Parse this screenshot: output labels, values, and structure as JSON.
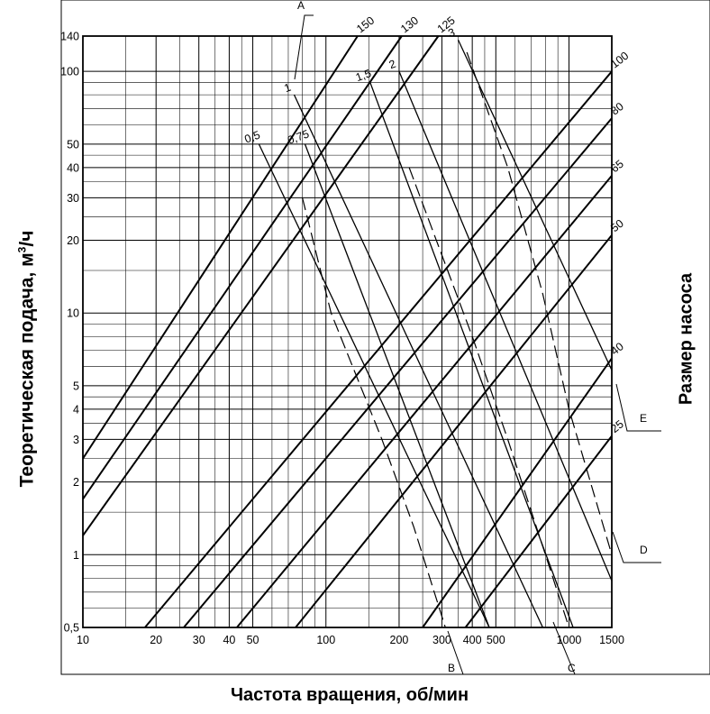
{
  "chart_data": {
    "type": "line",
    "xscale": "log",
    "yscale": "log",
    "xlim": [
      10,
      1500
    ],
    "ylim": [
      0.5,
      140
    ],
    "grid": true,
    "xlabel": "Частота вращения, об/мин",
    "ylabel_main": "Теоретическая подача, м",
    "ylabel_sup": "3",
    "ylabel_tail": "/ч",
    "right_label": "Размер насоса",
    "x_tick_labels": [
      "10",
      "20",
      "30",
      "40",
      "50",
      "100",
      "200",
      "300",
      "400",
      "500",
      "1000",
      "1500"
    ],
    "x_tick_values": [
      10,
      20,
      30,
      40,
      50,
      100,
      200,
      300,
      400,
      500,
      1000,
      1500
    ],
    "y_tick_labels": [
      "0,5",
      "1",
      "2",
      "3",
      "4",
      "5",
      "10",
      "20",
      "30",
      "40",
      "50",
      "100",
      "140"
    ],
    "y_tick_values": [
      0.5,
      1,
      2,
      3,
      4,
      5,
      10,
      20,
      30,
      40,
      50,
      100,
      140
    ],
    "pump_sizes": [
      {
        "name": "150",
        "points": [
          [
            10,
            2.5
          ],
          [
            135,
            140
          ]
        ]
      },
      {
        "name": "130",
        "points": [
          [
            10,
            1.7
          ],
          [
            205,
            140
          ]
        ]
      },
      {
        "name": "125",
        "points": [
          [
            10,
            1.2
          ],
          [
            290,
            140
          ]
        ]
      },
      {
        "name": "100",
        "points": [
          [
            18,
            0.5
          ],
          [
            1500,
            100
          ]
        ]
      },
      {
        "name": "80",
        "points": [
          [
            26,
            0.5
          ],
          [
            1500,
            64
          ]
        ]
      },
      {
        "name": "65",
        "points": [
          [
            43,
            0.5
          ],
          [
            1500,
            37
          ]
        ]
      },
      {
        "name": "50",
        "points": [
          [
            75,
            0.5
          ],
          [
            1500,
            21
          ]
        ]
      },
      {
        "name": "40",
        "points": [
          [
            250,
            0.5
          ],
          [
            1500,
            6.5
          ]
        ]
      },
      {
        "name": "25",
        "points": [
          [
            375,
            0.5
          ],
          [
            1500,
            3.1
          ]
        ]
      }
    ],
    "viscosity_lines": [
      {
        "name": "0,5",
        "points": [
          [
            53,
            50
          ],
          [
            470,
            0.5
          ]
        ]
      },
      {
        "name": "0,75",
        "points": [
          [
            82,
            50
          ],
          [
            470,
            0.5
          ]
        ]
      },
      {
        "name": "1",
        "points": [
          [
            74,
            80
          ],
          [
            780,
            0.5
          ]
        ]
      },
      {
        "name": "1,5",
        "points": [
          [
            152,
            90
          ],
          [
            1040,
            0.5
          ]
        ]
      },
      {
        "name": "2",
        "points": [
          [
            200,
            100
          ],
          [
            1500,
            0.78
          ]
        ]
      },
      {
        "name": "3",
        "points": [
          [
            350,
            135
          ],
          [
            1500,
            5.8
          ]
        ]
      }
    ],
    "dashed_paths": [
      {
        "points": [
          [
            80,
            30
          ],
          [
            105,
            10
          ],
          [
            170,
            3
          ],
          [
            230,
            1.3
          ],
          [
            310,
            0.5
          ]
        ]
      },
      {
        "points": [
          [
            220,
            40
          ],
          [
            400,
            8
          ],
          [
            560,
            3
          ],
          [
            800,
            1
          ],
          [
            1000,
            0.5
          ]
        ]
      },
      {
        "points": [
          [
            380,
            120
          ],
          [
            560,
            40
          ],
          [
            780,
            12
          ],
          [
            1000,
            4
          ],
          [
            1500,
            1
          ]
        ]
      }
    ],
    "markers": [
      "A",
      "B",
      "C",
      "D",
      "E"
    ],
    "colors": {
      "line": "#000000",
      "grid": "#000000",
      "background": "#ffffff"
    }
  }
}
